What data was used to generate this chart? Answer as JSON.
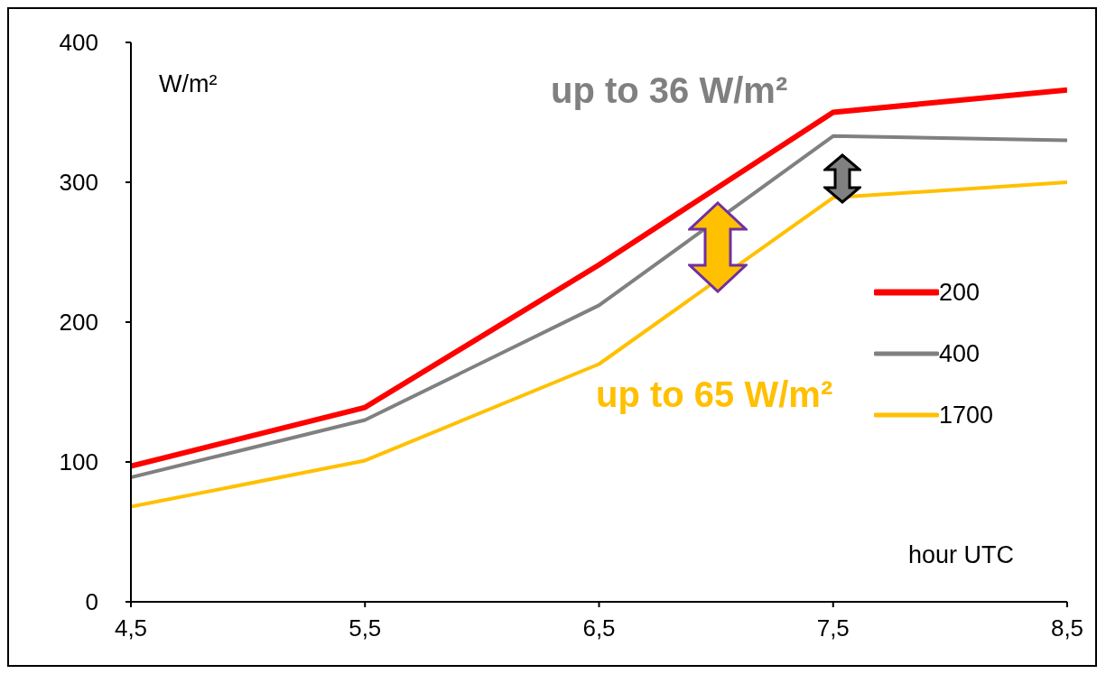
{
  "chart_data": {
    "type": "line",
    "xlabel": "hour UTC",
    "ylabel": "W/m²",
    "x": [
      4.5,
      5.5,
      6.5,
      7.5,
      8.5
    ],
    "series": [
      {
        "name": "200",
        "color": "#ff0000",
        "values": [
          97,
          139,
          241,
          350,
          366
        ]
      },
      {
        "name": "400",
        "color": "#808080",
        "values": [
          89,
          130,
          212,
          333,
          330
        ]
      },
      {
        "name": "1700",
        "color": "#ffc000",
        "values": [
          68,
          101,
          170,
          289,
          300
        ]
      }
    ],
    "annotations": [
      "up to 36 W/m²",
      "up to 65 W/m²"
    ],
    "xlim": [
      4.5,
      8.5
    ],
    "xticks": [
      {
        "value": 4.5,
        "label": "4,5"
      },
      {
        "value": 5.5,
        "label": "5,5"
      },
      {
        "value": 6.5,
        "label": "6,5"
      },
      {
        "value": 7.5,
        "label": "7,5"
      },
      {
        "value": 8.5,
        "label": "8,5"
      }
    ],
    "ylim": [
      0,
      400
    ],
    "yticks": [
      0,
      100,
      200,
      300,
      400
    ],
    "grid": false,
    "legend": "right",
    "marker": "none",
    "line_style": "solid"
  }
}
